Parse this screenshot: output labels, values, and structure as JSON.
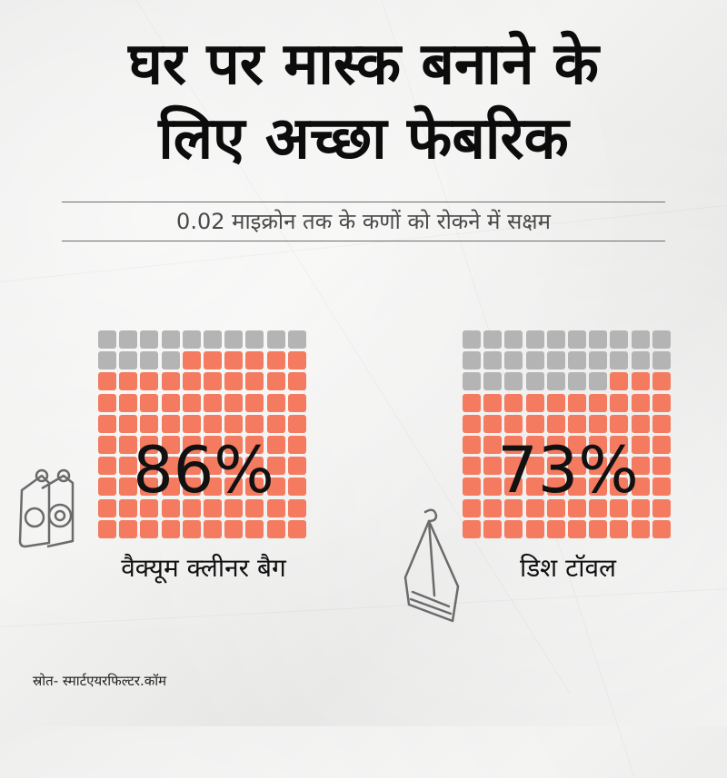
{
  "title_line1": "घर पर मास्क बनाने के",
  "title_line2": "लिए अच्छा फेबरिक",
  "subtitle": "0.02 माइक्रोन तक के कणों को रोकने में सक्षम",
  "colors": {
    "filled": "#f47a60",
    "empty": "#b4b4b4"
  },
  "chart_data": [
    {
      "type": "waffle",
      "grid": [
        10,
        10
      ],
      "value": 86,
      "value_label": "86%",
      "category": "वैक्यूम क्लीनर बैग",
      "icon": "vacuum-bag-icon"
    },
    {
      "type": "waffle",
      "grid": [
        10,
        10
      ],
      "value": 73,
      "value_label": "73%",
      "category": "डिश टॉवल",
      "icon": "dish-towel-icon"
    }
  ],
  "source": "स्रोत- स्मार्टएयरफिल्टर.कॉम"
}
